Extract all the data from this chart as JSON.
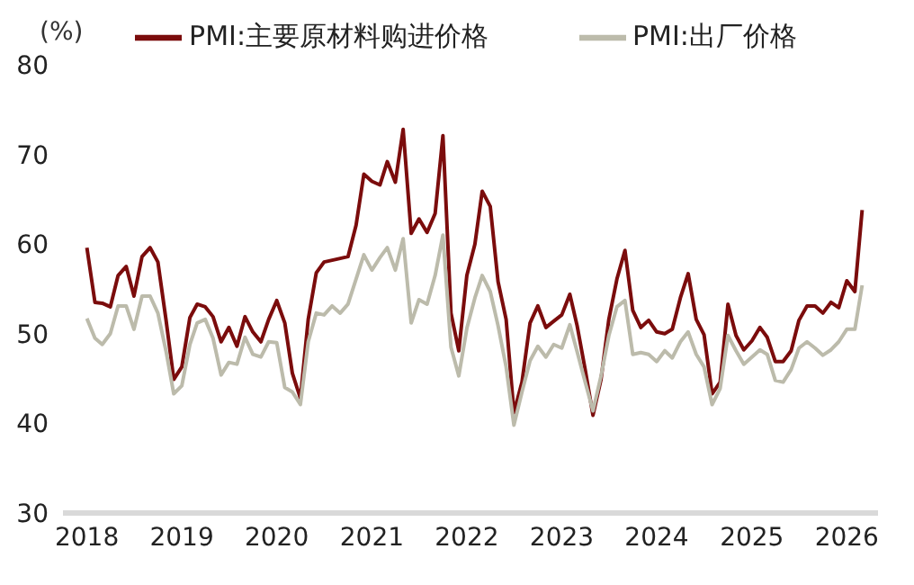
{
  "chart_data": {
    "type": "line",
    "ylabel": "(%)",
    "x": [
      "2018-01",
      "2018-02",
      "2018-03",
      "2018-04",
      "2018-05",
      "2018-06",
      "2018-07",
      "2018-08",
      "2018-09",
      "2018-10",
      "2018-11",
      "2018-12",
      "2019-01",
      "2019-02",
      "2019-03",
      "2019-04",
      "2019-05",
      "2019-06",
      "2019-07",
      "2019-08",
      "2019-09",
      "2019-10",
      "2019-11",
      "2019-12",
      "2020-01",
      "2020-02",
      "2020-03",
      "2020-04",
      "2020-05",
      "2020-06",
      "2020-07",
      "2020-08",
      "2020-09",
      "2020-10",
      "2020-11",
      "2020-12",
      "2021-01",
      "2021-02",
      "2021-03",
      "2021-04",
      "2021-05",
      "2021-06",
      "2021-07",
      "2021-08",
      "2021-09",
      "2021-10",
      "2021-11",
      "2021-12",
      "2022-01",
      "2022-02",
      "2022-03",
      "2022-04",
      "2022-05",
      "2022-06",
      "2022-07",
      "2022-08",
      "2022-09",
      "2022-10",
      "2022-11",
      "2022-12",
      "2023-01",
      "2023-02",
      "2023-03",
      "2023-04",
      "2023-05",
      "2023-06",
      "2023-07",
      "2023-08",
      "2023-09",
      "2023-10",
      "2023-11",
      "2023-12",
      "2024-01",
      "2024-02",
      "2024-03",
      "2024-04",
      "2024-05",
      "2024-06",
      "2024-07",
      "2024-08",
      "2024-09",
      "2024-10",
      "2024-11",
      "2024-12",
      "2025-01",
      "2025-02",
      "2025-03",
      "2025-04",
      "2025-05",
      "2025-06",
      "2025-07",
      "2025-08",
      "2025-09",
      "2025-10",
      "2025-11",
      "2025-12",
      "2026-01",
      "2026-02",
      "2026-03"
    ],
    "series": [
      {
        "name": "PMI:主要原材料购进价格",
        "color": "#7b0c0c",
        "values": [
          59.6,
          53.5,
          53.4,
          53.0,
          56.5,
          57.5,
          54.2,
          58.6,
          59.6,
          58.0,
          51.6,
          44.9,
          46.3,
          51.8,
          53.3,
          53.0,
          51.9,
          49.1,
          50.7,
          48.6,
          51.9,
          50.2,
          49.1,
          51.6,
          53.7,
          51.2,
          45.6,
          42.8,
          51.6,
          56.8,
          58.0,
          58.2,
          58.4,
          58.6,
          62.1,
          67.8,
          67.0,
          66.6,
          69.2,
          66.9,
          72.8,
          61.2,
          62.8,
          61.3,
          63.4,
          72.1,
          52.3,
          48.1,
          56.5,
          60.0,
          65.9,
          64.2,
          55.8,
          51.6,
          41.2,
          44.6,
          51.2,
          53.1,
          50.7,
          51.4,
          52.1,
          54.4,
          50.9,
          46.0,
          40.9,
          44.9,
          51.6,
          56.1,
          59.3,
          52.6,
          50.7,
          51.5,
          50.2,
          50.0,
          50.5,
          54.0,
          56.7,
          51.6,
          49.9,
          43.3,
          44.6,
          53.3,
          49.8,
          48.2,
          49.2,
          50.7,
          49.6,
          46.9,
          46.9,
          48.1,
          51.5,
          53.1,
          53.1,
          52.3,
          53.5,
          52.9,
          55.9,
          54.7,
          63.8
        ]
      },
      {
        "name": "PMI:出厂价格",
        "color": "#bcbbab",
        "values": [
          51.7,
          49.5,
          48.8,
          50.0,
          53.1,
          53.1,
          50.5,
          54.2,
          54.2,
          52.3,
          48.1,
          43.3,
          44.2,
          48.8,
          51.2,
          51.6,
          49.5,
          45.4,
          46.8,
          46.6,
          49.6,
          47.7,
          47.4,
          49.1,
          49.0,
          44.0,
          43.5,
          42.1,
          49.1,
          52.3,
          52.1,
          53.1,
          52.3,
          53.3,
          56.1,
          58.8,
          57.1,
          58.5,
          59.6,
          57.1,
          60.6,
          51.2,
          53.8,
          53.3,
          56.5,
          61.0,
          48.5,
          45.3,
          50.6,
          54.0,
          56.5,
          54.7,
          50.9,
          46.3,
          39.8,
          43.5,
          47.0,
          48.6,
          47.4,
          48.8,
          48.4,
          51.0,
          48.0,
          44.6,
          41.4,
          45.3,
          49.8,
          53.0,
          53.7,
          47.7,
          47.9,
          47.7,
          46.9,
          48.1,
          47.3,
          49.1,
          50.2,
          47.7,
          46.3,
          42.1,
          43.9,
          49.8,
          48.1,
          46.6,
          47.4,
          48.2,
          47.7,
          44.8,
          44.6,
          46.0,
          48.4,
          49.1,
          48.4,
          47.6,
          48.2,
          49.1,
          50.5,
          50.5,
          55.4
        ]
      }
    ],
    "xlim": [
      "2017-10",
      "2026-05"
    ],
    "xticks": [
      {
        "value": "2018-01",
        "label": "2018"
      },
      {
        "value": "2019-01",
        "label": "2019"
      },
      {
        "value": "2020-01",
        "label": "2020"
      },
      {
        "value": "2021-01",
        "label": "2021"
      },
      {
        "value": "2022-01",
        "label": "2022"
      },
      {
        "value": "2023-01",
        "label": "2023"
      },
      {
        "value": "2024-01",
        "label": "2024"
      },
      {
        "value": "2025-01",
        "label": "2025"
      },
      {
        "value": "2026-01",
        "label": "2026"
      }
    ],
    "ylim": [
      30,
      80
    ],
    "yticks": [
      30,
      40,
      50,
      60,
      70,
      80
    ],
    "grid": false,
    "legend": "top",
    "marker": "none",
    "line_style": "solid"
  }
}
